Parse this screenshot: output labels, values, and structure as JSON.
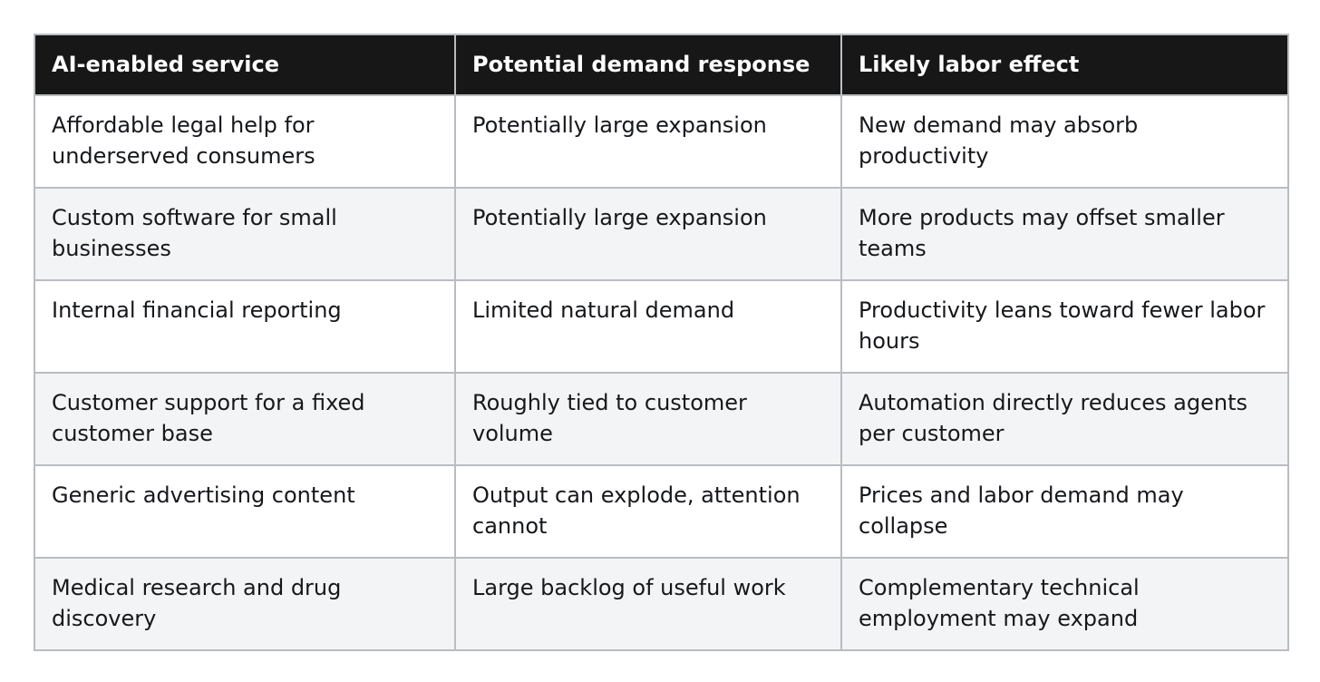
{
  "table": {
    "headers": [
      "AI-enabled service",
      "Potential demand response",
      "Likely labor effect"
    ],
    "rows": [
      [
        "Affordable legal help for underserved consumers",
        "Potentially large expansion",
        "New demand may absorb productivity"
      ],
      [
        "Custom software for small businesses",
        "Potentially large expansion",
        "More products may offset smaller teams"
      ],
      [
        "Internal financial reporting",
        "Limited natural demand",
        "Productivity leans toward fewer labor hours"
      ],
      [
        "Customer support for a fixed customer base",
        "Roughly tied to customer volume",
        "Automation directly reduces agents per customer"
      ],
      [
        "Generic advertising content",
        "Output can explode, attention cannot",
        "Prices and labor demand may collapse"
      ],
      [
        "Medical research and drug discovery",
        "Large backlog of useful work",
        "Complementary technical employment may expand"
      ]
    ]
  },
  "colors": {
    "header_bg": "#171717",
    "header_text": "#ffffff",
    "row_alt_bg": "#f3f4f6",
    "border": "#b9bcc3"
  }
}
